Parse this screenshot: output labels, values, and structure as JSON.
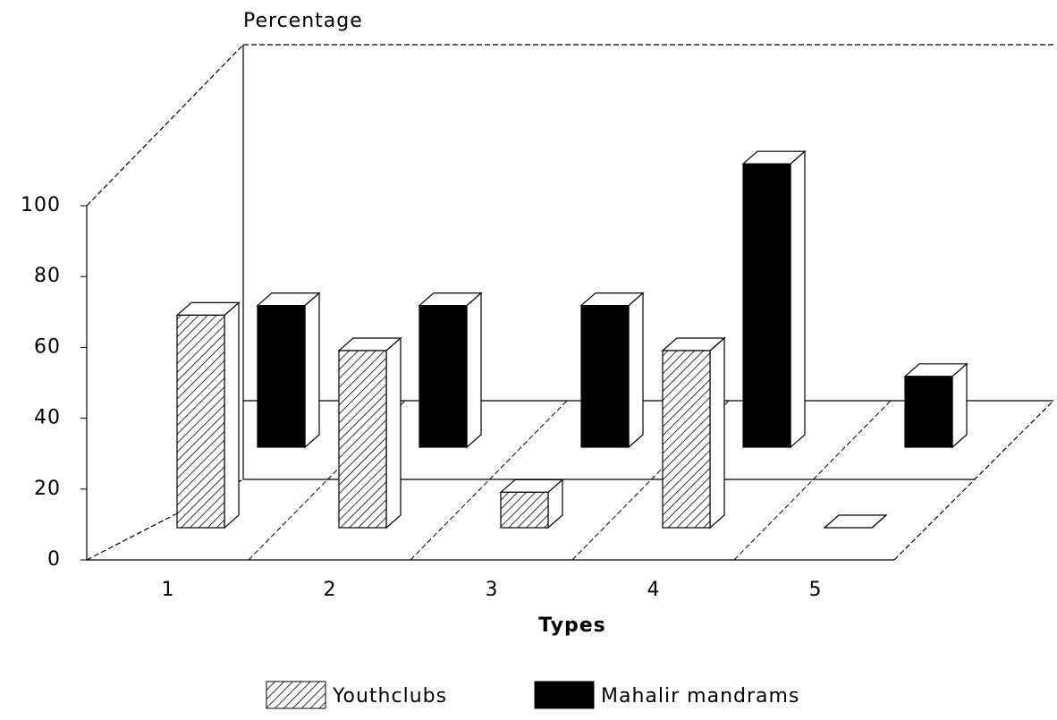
{
  "chart_data": {
    "type": "bar3d",
    "y_label": "Percentage",
    "x_label": "Types",
    "categories": [
      "1",
      "2",
      "3",
      "4",
      "5"
    ],
    "series": [
      {
        "name": "Youthclubs",
        "color": "#000000",
        "fill": "hatch",
        "values": [
          60,
          50,
          10,
          50,
          0
        ]
      },
      {
        "name": "Mahalir mandrams",
        "color": "#000000",
        "fill": "solid",
        "values": [
          40,
          40,
          40,
          80,
          20
        ]
      }
    ],
    "ylim": [
      0,
      100
    ],
    "yticks": [
      0,
      20,
      40,
      60,
      80,
      100
    ],
    "legend": "bottom"
  }
}
